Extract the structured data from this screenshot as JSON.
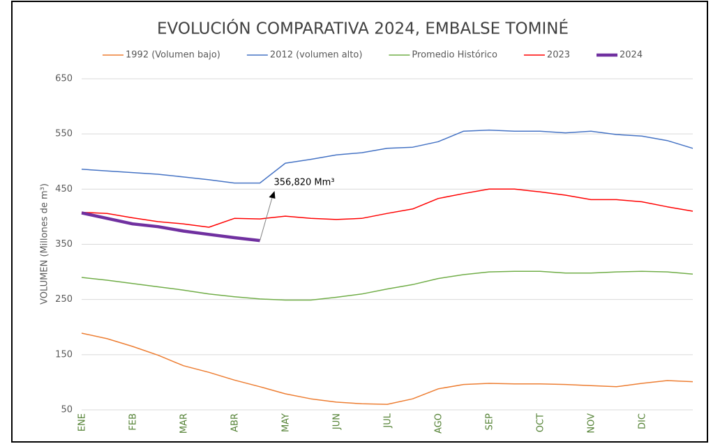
{
  "chart_data": {
    "type": "line",
    "title": "EVOLUCIÓN COMPARATIVA 2024, EMBALSE TOMINÉ",
    "y_label": "VOLUMEN (Millones de m³)",
    "annotation": "356,820 Mm³",
    "categories": [
      "ENE",
      null,
      "FEB",
      null,
      "MAR",
      null,
      "ABR",
      null,
      "MAY",
      null,
      "JUN",
      null,
      "JUL",
      null,
      "AGO",
      null,
      "SEP",
      null,
      "OCT",
      null,
      "NOV",
      null,
      "DIC",
      null,
      null
    ],
    "series": [
      {
        "name": "1992 (Volumen bajo)",
        "color": "#ed7d31",
        "width": 1.5,
        "values": [
          189,
          179,
          165,
          149,
          130,
          118,
          104,
          92,
          79,
          70,
          64,
          61,
          60,
          70,
          88,
          96,
          98,
          97,
          97,
          96,
          94,
          92,
          98,
          103,
          101
        ]
      },
      {
        "name": "2012 (volumen alto)",
        "color": "#4472c4",
        "width": 1.5,
        "values": [
          486,
          483,
          480,
          477,
          472,
          467,
          461,
          461,
          497,
          504,
          512,
          516,
          524,
          526,
          536,
          555,
          557,
          555,
          555,
          552,
          555,
          549,
          546,
          538,
          524
        ]
      },
      {
        "name": "Promedio Histórico",
        "color": "#70ad47",
        "width": 1.5,
        "values": [
          290,
          285,
          279,
          273,
          267,
          260,
          255,
          251,
          249,
          249,
          254,
          260,
          269,
          277,
          288,
          295,
          300,
          301,
          301,
          298,
          298,
          300,
          301,
          300,
          296
        ]
      },
      {
        "name": "2023",
        "color": "#ff0000",
        "width": 1.5,
        "values": [
          408,
          406,
          398,
          391,
          387,
          381,
          397,
          396,
          401,
          397,
          395,
          397,
          406,
          414,
          433,
          442,
          450,
          450,
          445,
          439,
          431,
          431,
          427,
          418,
          410
        ]
      },
      {
        "name": "2024",
        "color": "#7030a0",
        "width": 4.5,
        "values": [
          407,
          397,
          387,
          382,
          374,
          368,
          362,
          356.82,
          null,
          null,
          null,
          null,
          null,
          null,
          null,
          null,
          null,
          null,
          null,
          null,
          null,
          null,
          null,
          null,
          null
        ]
      }
    ],
    "ylim": [
      50,
      650
    ],
    "yticks": [
      50,
      150,
      250,
      350,
      450,
      550,
      650
    ],
    "grid": true
  }
}
